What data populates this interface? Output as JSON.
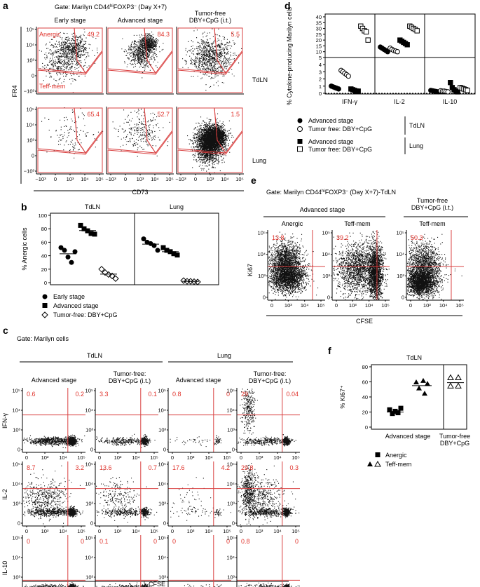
{
  "panel_a": {
    "letter": "a",
    "gate_prefix": "Gate: Marilyn CD44",
    "gate_hi": "hi",
    "gate_mid": "FOXP3",
    "gate_neg": "−",
    "gate_suffix": " (Day X+7)",
    "col_titles": [
      "Early stage",
      "Advanced stage",
      "Tumor-free",
      "DBY+CpG (i.t.)"
    ],
    "row_labels": [
      "TdLN",
      "Lung"
    ],
    "ylabel": "FR4",
    "xlabel": "CD73",
    "gate_labels": [
      "Anergic",
      "Teff-mem"
    ],
    "values": [
      [
        "49.2",
        "84.3",
        "5.5"
      ],
      [
        "65.4",
        "52.7",
        "1.5"
      ]
    ],
    "yticks": [
      "10⁵",
      "10⁴",
      "10³",
      "0",
      "−10³"
    ],
    "xticks": [
      "−10³",
      "0",
      "10³",
      "10⁴",
      "10⁵"
    ]
  },
  "panel_b": {
    "letter": "b",
    "ylabel": "% Anergic cells",
    "yticks": [
      "100",
      "80",
      "60",
      "40",
      "20",
      "0"
    ],
    "groups": [
      "TdLN",
      "Lung"
    ],
    "legend": [
      "Early stage",
      "Advanced stage",
      "Tumor-free: DBY+CpG"
    ]
  },
  "panel_c": {
    "letter": "c",
    "gate": "Gate: Marilyn cells",
    "groups": [
      "TdLN",
      "Lung"
    ],
    "col_titles": [
      "Advanced stage",
      "Tumor-free:",
      "DBY+CpG (i.t.)",
      "Advanced stage",
      "Tumor-free:",
      "DBY+CpG (i.t.)"
    ],
    "row_labels": [
      "IFN-γ",
      "IL-2",
      "IL-10"
    ],
    "xlabel": "CFSE",
    "values": [
      [
        [
          "0.6",
          "0.2"
        ],
        [
          "3.3",
          "0.1"
        ],
        [
          "0.8",
          "0"
        ],
        [
          "29",
          "0.04"
        ]
      ],
      [
        [
          "8.7",
          "3.2"
        ],
        [
          "13.6",
          "0.7"
        ],
        [
          "17.6",
          "4.2"
        ],
        [
          "29.8",
          "0.3"
        ]
      ],
      [
        [
          "0",
          "0"
        ],
        [
          "0.1",
          "0"
        ],
        [
          "0",
          "0"
        ],
        [
          "0.8",
          "0"
        ]
      ]
    ],
    "yticks": [
      "10⁵",
      "10⁴",
      "10³",
      "0"
    ],
    "xticks": [
      "0",
      "10³",
      "10⁴",
      "10⁵"
    ]
  },
  "panel_d": {
    "letter": "d",
    "ylabel": "% Cytokine-producing Marilyn cells",
    "yticks": [
      "40",
      "35",
      "30",
      "25",
      "20",
      "15",
      "10",
      "5",
      "4",
      "3",
      "2",
      "1",
      "0"
    ],
    "cytokines": [
      "IFN-γ",
      "IL-2",
      "IL-10"
    ],
    "legend": [
      "Advanced stage",
      "Tumor free: DBY+CpG",
      "Advanced stage",
      "Tumor free: DBY+CpG"
    ],
    "legend_groups": [
      "TdLN",
      "Lung"
    ]
  },
  "panel_e": {
    "letter": "e",
    "gate_prefix": "Gate: Marilyn CD44",
    "gate_hi": "hi",
    "gate_mid": "FOXP3",
    "gate_neg": "−",
    "gate_suffix": " (Day X+7)-TdLN",
    "group1": "Advanced stage",
    "group2a": "Tumor-free",
    "group2b": "DBY+CpG (i.t.)",
    "col_titles": [
      "Anergic",
      "Teff-mem",
      "Teff-mem"
    ],
    "values": [
      "13.8",
      "39.2",
      "50.3"
    ],
    "ylabel": "Ki67",
    "xlabel": "CFSE",
    "yticks": [
      "10⁵",
      "10⁴",
      "10³",
      "0"
    ],
    "xticks": [
      "0",
      "10³",
      "10⁴",
      "10⁵"
    ]
  },
  "panel_f": {
    "letter": "f",
    "title": "TdLN",
    "ylabel": "% Ki67⁺",
    "yticks": [
      "80",
      "60",
      "40",
      "20",
      "0"
    ],
    "groups": [
      "Advanced stage",
      "Tumor-free",
      "DBY+CpG"
    ],
    "legend": [
      "Anergic",
      "Teff-mem"
    ]
  }
}
